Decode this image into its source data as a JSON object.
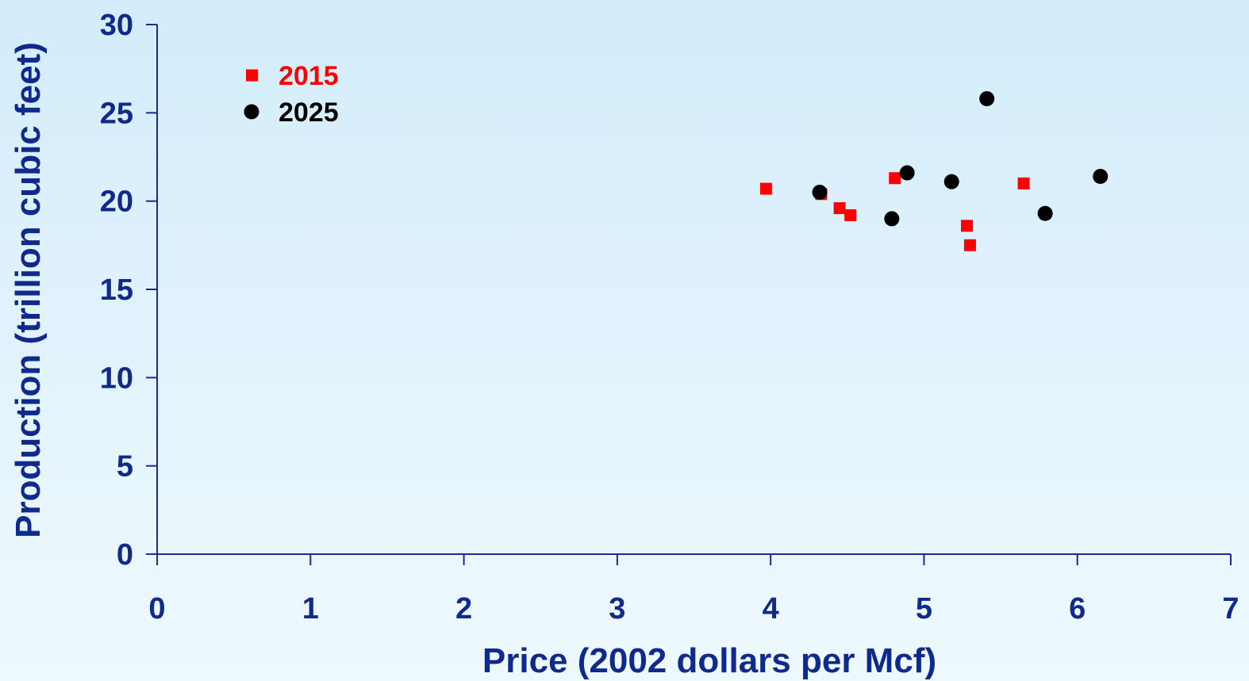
{
  "chart_data": {
    "type": "scatter",
    "xlabel": "Price (2002 dollars per Mcf)",
    "ylabel": "Production (trillion cubic feet)",
    "xlim": [
      0,
      7
    ],
    "ylim": [
      0,
      30
    ],
    "x_ticks": [
      "0",
      "1",
      "2",
      "3",
      "4",
      "5",
      "6",
      "7"
    ],
    "y_ticks": [
      "0",
      "5",
      "10",
      "15",
      "20",
      "25",
      "30"
    ],
    "grid": false,
    "legend_position": "top-left",
    "series": [
      {
        "name": "2015",
        "marker": "square",
        "color": "#ff0000",
        "points": [
          {
            "x": 3.97,
            "y": 20.7
          },
          {
            "x": 4.33,
            "y": 20.4
          },
          {
            "x": 4.45,
            "y": 19.6
          },
          {
            "x": 4.52,
            "y": 19.2
          },
          {
            "x": 4.81,
            "y": 21.3
          },
          {
            "x": 5.28,
            "y": 18.6
          },
          {
            "x": 5.3,
            "y": 17.5
          },
          {
            "x": 5.65,
            "y": 21.0
          }
        ]
      },
      {
        "name": "2025",
        "marker": "circle",
        "color": "#000000",
        "points": [
          {
            "x": 4.32,
            "y": 20.5
          },
          {
            "x": 4.79,
            "y": 19.0
          },
          {
            "x": 4.89,
            "y": 21.6
          },
          {
            "x": 5.18,
            "y": 21.1
          },
          {
            "x": 5.41,
            "y": 25.8
          },
          {
            "x": 5.79,
            "y": 19.3
          },
          {
            "x": 6.15,
            "y": 21.4
          }
        ]
      }
    ]
  }
}
